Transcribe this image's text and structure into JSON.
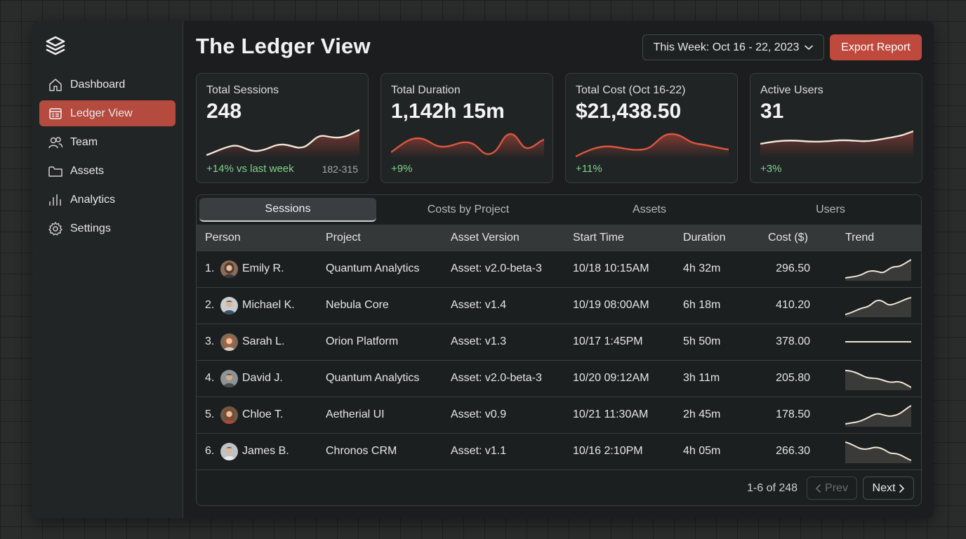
{
  "sidebar": {
    "logo_icon": "layers-icon",
    "items": [
      {
        "label": "Dashboard",
        "icon": "home-icon",
        "active": false
      },
      {
        "label": "Ledger View",
        "icon": "ledger-icon",
        "active": true
      },
      {
        "label": "Team",
        "icon": "users-icon",
        "active": false
      },
      {
        "label": "Assets",
        "icon": "folder-icon",
        "active": false
      },
      {
        "label": "Analytics",
        "icon": "bar-chart-icon",
        "active": false
      },
      {
        "label": "Settings",
        "icon": "gear-icon",
        "active": false
      }
    ]
  },
  "header": {
    "title": "The Ledger View",
    "date_range": "This Week: Oct 16 - 22, 2023",
    "export_label": "Export Report"
  },
  "colors": {
    "accent": "#c0493d",
    "positive": "#7ed38a",
    "card_spark_light": "#f0e6d6",
    "card_spark_red": "#d9573f"
  },
  "cards": [
    {
      "label": "Total Sessions",
      "value": "248",
      "change": "+14% vs last week",
      "range": "182-315"
    },
    {
      "label": "Total Duration",
      "value": "1,142h 15m",
      "change": "+9%"
    },
    {
      "label": "Total Cost (Oct 16-22)",
      "value": "$21,438.50",
      "change": "+11%"
    },
    {
      "label": "Active Users",
      "value": "31",
      "change": "+3%"
    }
  ],
  "tabs": [
    "Sessions",
    "Costs by Project",
    "Assets",
    "Users"
  ],
  "active_tab": "Sessions",
  "table": {
    "columns": [
      "Person",
      "Project",
      "Asset Version",
      "Start Time",
      "Duration",
      "Cost ($)",
      "Trend"
    ],
    "rows": [
      {
        "index": "1.",
        "person": "Emily R.",
        "project": "Quantum Analytics",
        "asset": "Asset: v2.0-beta-3",
        "start": "10/18 10:15AM",
        "duration": "4h 32m",
        "cost": "296.50",
        "trend": "up"
      },
      {
        "index": "2.",
        "person": "Michael K.",
        "project": "Nebula Core",
        "asset": "Asset: v1.4",
        "start": "10/19 08:00AM",
        "duration": "6h 18m",
        "cost": "410.20",
        "trend": "up-wave"
      },
      {
        "index": "3.",
        "person": "Sarah L.",
        "project": "Orion Platform",
        "asset": "Asset: v1.3",
        "start": "10/17 1:45PM",
        "duration": "5h 50m",
        "cost": "378.00",
        "trend": "flat"
      },
      {
        "index": "4.",
        "person": "David J.",
        "project": "Quantum Analytics",
        "asset": "Asset: v2.0-beta-3",
        "start": "10/20 09:12AM",
        "duration": "3h 11m",
        "cost": "205.80",
        "trend": "down"
      },
      {
        "index": "5.",
        "person": "Chloe T.",
        "project": "Aetherial UI",
        "asset": "Asset: v0.9",
        "start": "10/21 11:30AM",
        "duration": "2h 45m",
        "cost": "178.50",
        "trend": "up"
      },
      {
        "index": "6.",
        "person": "James B.",
        "project": "Chronos CRM",
        "asset": "Asset: v1.1",
        "start": "10/16 2:10PM",
        "duration": "4h 05m",
        "cost": "266.30",
        "trend": "down"
      }
    ]
  },
  "pagination": {
    "text": "1-6 of 248",
    "prev_label": "Prev",
    "next_label": "Next"
  }
}
